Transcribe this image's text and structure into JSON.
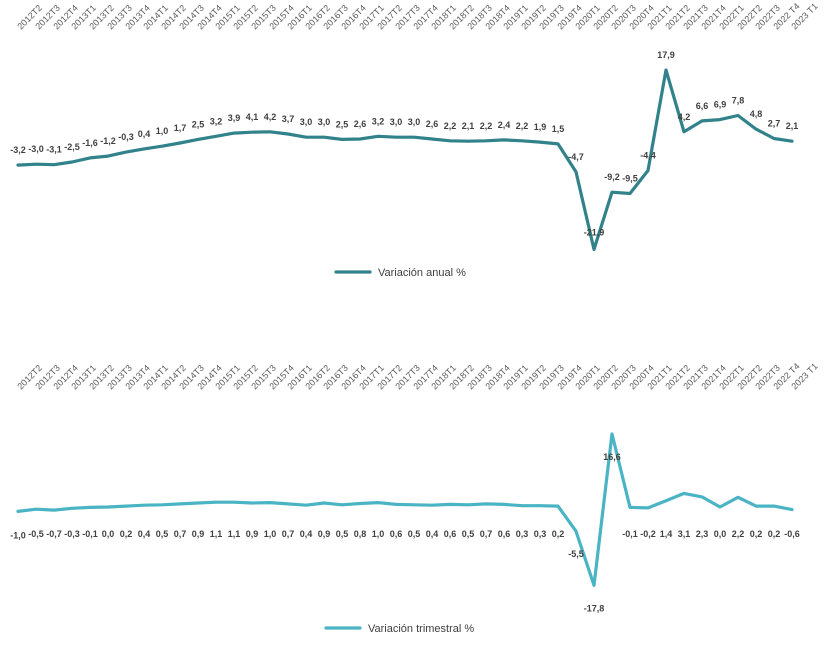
{
  "chart_data": [
    {
      "type": "line",
      "categories": [
        "2012T2",
        "2012T3",
        "2012T4",
        "2013T1",
        "2013T2",
        "2013T3",
        "2013T4",
        "2014T1",
        "2014T2",
        "2014T3",
        "2014T4",
        "2015T1",
        "2015T2",
        "2015T3",
        "2015T4",
        "2016T1",
        "2016T2",
        "2016T3",
        "2016T4",
        "2017T1",
        "2017T2",
        "2017T3",
        "2017T4",
        "2018T1",
        "2018T2",
        "2018T3",
        "2018T4",
        "2019T1",
        "2019T2",
        "2019T3",
        "2019T4",
        "2020T1",
        "2020T2",
        "2020T3",
        "2020T4",
        "2021T1",
        "2021T2",
        "2021T3",
        "2021T4",
        "2022T1",
        "2022T2",
        "2022T3",
        "2022 T4",
        "2023 T1"
      ],
      "series": [
        {
          "name": "Variación anual %",
          "color": "#31828a",
          "values": [
            -3.2,
            -3.0,
            -3.1,
            -2.5,
            -1.6,
            -1.2,
            -0.3,
            0.4,
            1.0,
            1.7,
            2.5,
            3.2,
            3.9,
            4.1,
            4.2,
            3.7,
            3.0,
            3.0,
            2.5,
            2.6,
            3.2,
            3.0,
            3.0,
            2.6,
            2.2,
            2.1,
            2.2,
            2.4,
            2.2,
            1.9,
            1.5,
            -4.7,
            -21.9,
            -9.2,
            -9.5,
            -4.4,
            17.9,
            4.2,
            6.6,
            6.9,
            7.8,
            4.8,
            2.7,
            2.1
          ],
          "labels": [
            "-3,2",
            "-3,0",
            "-3,1",
            "-2,5",
            "-1,6",
            "-1,2",
            "-0,3",
            "0,4",
            "1,0",
            "1,7",
            "2,5",
            "3,2",
            "3,9",
            "4,1",
            "4,2",
            "3,7",
            "3,0",
            "3,0",
            "2,5",
            "2,6",
            "3,2",
            "3,0",
            "3,0",
            "2,6",
            "2,2",
            "2,1",
            "2,2",
            "2,4",
            "2,2",
            "1,9",
            "1,5",
            "-4,7",
            "-21,9",
            "-9,2",
            "-9,5",
            "-4,4",
            "17,9",
            "4,2",
            "6,6",
            "6,9",
            "7,8",
            "4,8",
            "2,7",
            "2,1"
          ],
          "last_label_color": "#31a0b0"
        }
      ],
      "title": "",
      "xlabel": "",
      "ylabel": "",
      "grid": false,
      "legend": "bottom"
    },
    {
      "type": "line",
      "categories": [
        "2012T2",
        "2012T3",
        "2012T4",
        "2013T1",
        "2013T2",
        "2013T3",
        "2013T4",
        "2014T1",
        "2014T2",
        "2014T3",
        "2014T4",
        "2015T1",
        "2015T2",
        "2015T3",
        "2015T4",
        "2016T1",
        "2016T2",
        "2016T3",
        "2016T4",
        "2017T1",
        "2017T2",
        "2017T3",
        "2017T4",
        "2018T1",
        "2018T2",
        "2018T3",
        "2018T4",
        "2019T1",
        "2019T2",
        "2019T3",
        "2019T4",
        "2020T1",
        "2020T2",
        "2020T3",
        "2020T4",
        "2021T1",
        "2021T2",
        "2021T3",
        "2021T4",
        "2022T1",
        "2022T2",
        "2022T3",
        "2022 T4",
        "2023 T1"
      ],
      "series": [
        {
          "name": "Variación trimestral %",
          "color": "#4ab4c4",
          "values": [
            -1.0,
            -0.5,
            -0.7,
            -0.3,
            -0.1,
            0.0,
            0.2,
            0.4,
            0.5,
            0.7,
            0.9,
            1.1,
            1.1,
            0.9,
            1.0,
            0.7,
            0.4,
            0.9,
            0.5,
            0.8,
            1.0,
            0.6,
            0.5,
            0.4,
            0.6,
            0.5,
            0.7,
            0.6,
            0.3,
            0.3,
            0.2,
            -5.5,
            -17.8,
            16.6,
            -0.1,
            -0.2,
            1.4,
            3.1,
            2.3,
            0.0,
            2.2,
            0.2,
            0.2,
            -0.6
          ],
          "labels": [
            "-1,0",
            "-0,5",
            "-0,7",
            "-0,3",
            "-0,1",
            "0,0",
            "0,2",
            "0,4",
            "0,5",
            "0,7",
            "0,9",
            "1,1",
            "1,1",
            "0,9",
            "1,0",
            "0,7",
            "0,4",
            "0,9",
            "0,5",
            "0,8",
            "1,0",
            "0,6",
            "0,5",
            "0,4",
            "0,6",
            "0,5",
            "0,7",
            "0,6",
            "0,3",
            "0,3",
            "0,2",
            "-5,5",
            "-17,8",
            "16,6",
            "-0,1",
            "-0,2",
            "1,4",
            "3,1",
            "2,3",
            "0,0",
            "2,2",
            "0,2",
            "0,2",
            "-0,6"
          ],
          "last_label_color": "#31a0b0"
        }
      ],
      "title": "",
      "xlabel": "",
      "ylabel": "",
      "grid": false,
      "legend": "bottom"
    }
  ]
}
